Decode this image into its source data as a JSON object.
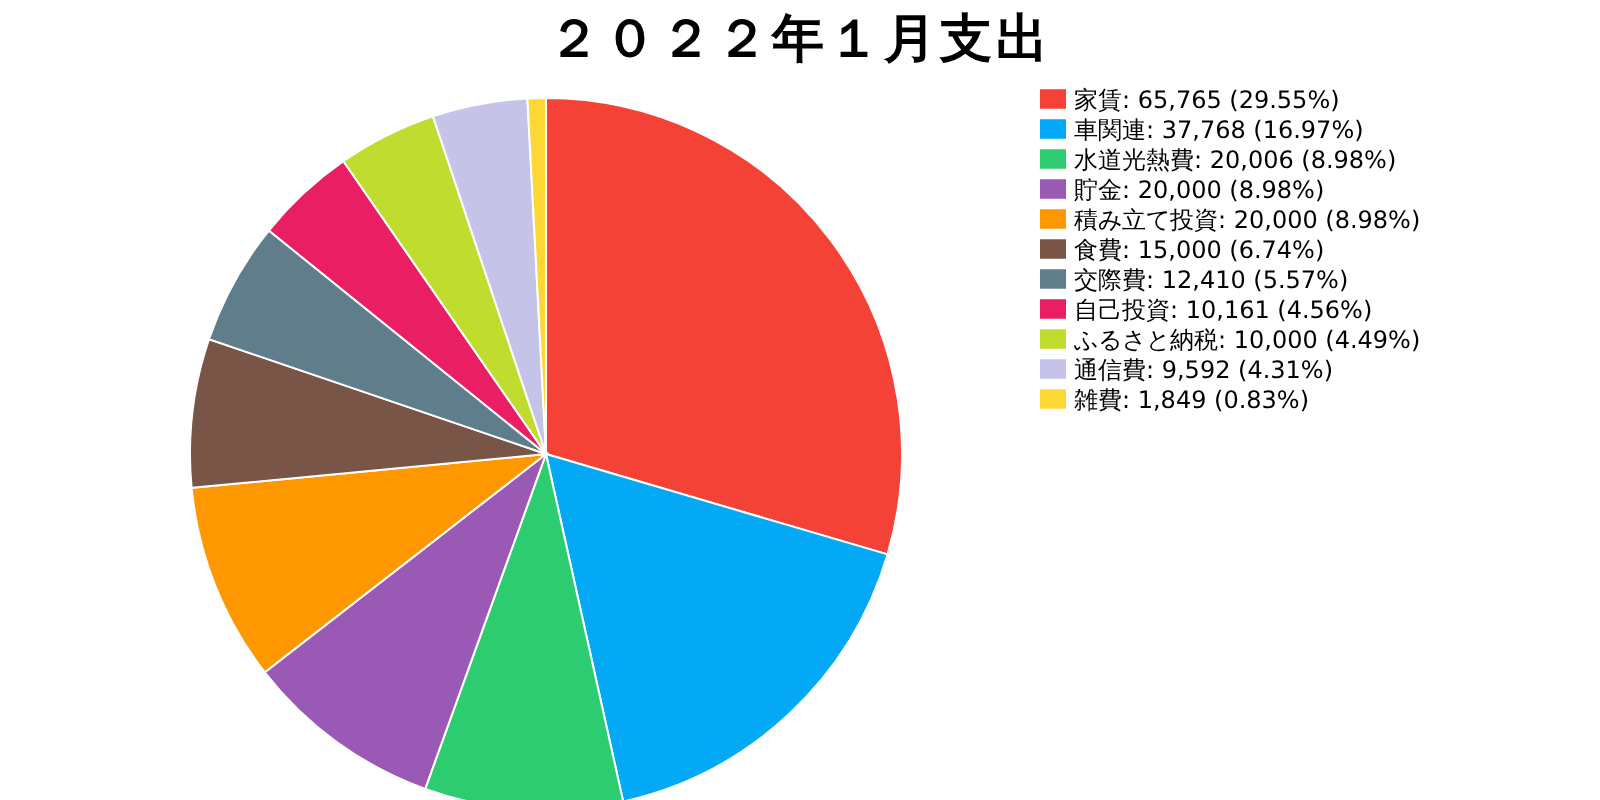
{
  "chart_data": {
    "type": "pie",
    "title": "２０２２年１月支出",
    "categories": [
      "家賃",
      "車関連",
      "水道光熱費",
      "貯金",
      "積み立て投資",
      "食費",
      "交際費",
      "自己投資",
      "ふるさと納税",
      "通信費",
      "雑費"
    ],
    "values": [
      65765,
      37768,
      20006,
      20000,
      20000,
      15000,
      12410,
      10161,
      10000,
      9592,
      1849
    ],
    "value_labels": [
      ": 65,765 (29.55%)",
      ": 37,768 (16.97%)",
      ": 20,006 (8.98%)",
      ": 20,000 (8.98%)",
      ": 20,000 (8.98%)",
      ": 15,000 (6.74%)",
      ": 12,410 (5.57%)",
      ": 10,161 (4.56%)",
      ": 10,000 (4.49%)",
      ": 9,592 (4.31%)",
      ": 1,849 (0.83%)"
    ],
    "colors": [
      "#f44336",
      "#03a9f4",
      "#2ecc71",
      "#9b59b6",
      "#ff9800",
      "#795548",
      "#607d8b",
      "#e91e63",
      "#c0dc2f",
      "#c5c3e8",
      "#fdd835"
    ],
    "legend": "top right"
  }
}
